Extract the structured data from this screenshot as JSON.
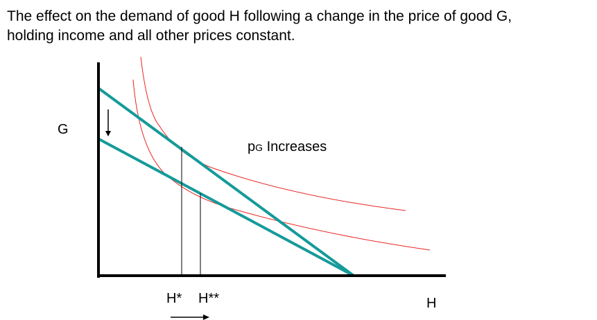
{
  "caption": {
    "line1": "The effect on the demand of good H following a change in the price of good G,",
    "line2": "holding income and all other prices constant."
  },
  "axes": {
    "y_label": "G",
    "x_label": "H"
  },
  "annotation": {
    "price_symbol": "p",
    "price_subscript": "G",
    "text": " Increases"
  },
  "markers": {
    "h_star": "H*",
    "h_double_star": "H**"
  },
  "colors": {
    "budget_line": "#159a9a",
    "indifference_curve": "#e8231f",
    "axis": "#000000"
  }
}
